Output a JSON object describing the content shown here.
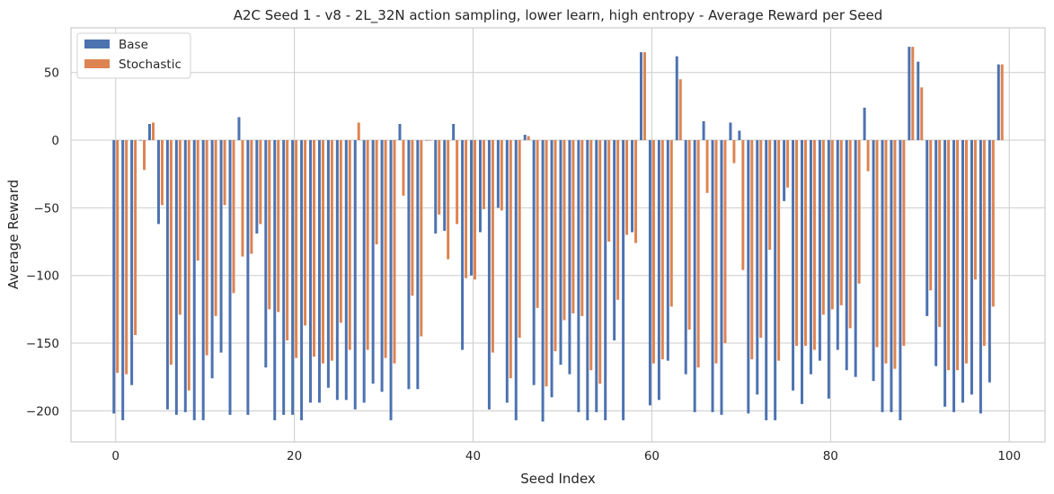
{
  "chart_data": {
    "type": "bar",
    "title": "A2C Seed 1 - v8 - 2L_32N action sampling, lower learn, high entropy - Average Reward per Seed",
    "xlabel": "Seed Index",
    "ylabel": "Average Reward",
    "xlim": [
      -5,
      104
    ],
    "ylim": [
      -223,
      83
    ],
    "xticks": [
      0,
      20,
      40,
      60,
      80,
      100
    ],
    "yticks": [
      -200,
      -150,
      -100,
      -50,
      0,
      50
    ],
    "grid": true,
    "legend_position": "top-left",
    "colors": {
      "Base": "#4c72b0",
      "Stochastic": "#dd8452"
    },
    "x": [
      0,
      1,
      2,
      3,
      4,
      5,
      6,
      7,
      8,
      9,
      10,
      11,
      12,
      13,
      14,
      15,
      16,
      17,
      18,
      19,
      20,
      21,
      22,
      23,
      24,
      25,
      26,
      27,
      28,
      29,
      30,
      31,
      32,
      33,
      34,
      35,
      36,
      37,
      38,
      39,
      40,
      41,
      42,
      43,
      44,
      45,
      46,
      47,
      48,
      49,
      50,
      51,
      52,
      53,
      54,
      55,
      56,
      57,
      58,
      59,
      60,
      61,
      62,
      63,
      64,
      65,
      66,
      67,
      68,
      69,
      70,
      71,
      72,
      73,
      74,
      75,
      76,
      77,
      78,
      79,
      80,
      81,
      82,
      83,
      84,
      85,
      86,
      87,
      88,
      89,
      90,
      91,
      92,
      93,
      94,
      95,
      96,
      97,
      98,
      99
    ],
    "series": [
      {
        "name": "Base",
        "values": [
          -202,
          -207,
          -181,
          0,
          12,
          -62,
          -199,
          -203,
          -201,
          -207,
          -207,
          -176,
          -157,
          -203,
          17,
          -203,
          -69,
          -168,
          -207,
          -203,
          -203,
          -207,
          -194,
          -194,
          -183,
          -192,
          -192,
          -199,
          -194,
          -180,
          -186,
          -207,
          12,
          -184,
          -184,
          0,
          -69,
          -67,
          12,
          -155,
          -100,
          -68,
          -199,
          -50,
          -194,
          -207,
          4,
          -181,
          -208,
          -190,
          -166,
          -173,
          -201,
          -207,
          -201,
          -207,
          -148,
          -207,
          -68,
          65,
          -196,
          -192,
          -163,
          62,
          -173,
          -201,
          14,
          -201,
          -203,
          13,
          7,
          -202,
          -188,
          -207,
          -207,
          -45,
          -185,
          -195,
          -173,
          -163,
          -191,
          -155,
          -170,
          -175,
          24,
          -178,
          -201,
          -201,
          -207,
          69,
          58,
          -130,
          -167,
          -197,
          -201,
          -194,
          -188,
          -202,
          -179,
          56
        ]
      },
      {
        "name": "Stochastic",
        "values": [
          -172,
          -173,
          -144,
          -22,
          13,
          -48,
          -166,
          -129,
          -185,
          -89,
          -159,
          -130,
          -48,
          -113,
          -86,
          -84,
          -62,
          -125,
          -127,
          -148,
          -161,
          -137,
          -160,
          -165,
          -163,
          -135,
          -155,
          13,
          -155,
          -77,
          -161,
          -165,
          -41,
          -115,
          -145,
          0,
          -55,
          -88,
          -62,
          -102,
          -103,
          -51,
          -157,
          -52,
          -176,
          -146,
          3,
          -124,
          -182,
          -156,
          -133,
          -128,
          -130,
          -170,
          -180,
          -75,
          -118,
          -70,
          -76,
          65,
          -165,
          -162,
          -123,
          45,
          -140,
          -168,
          -39,
          -165,
          -150,
          -17,
          -96,
          -162,
          -146,
          -81,
          -163,
          -35,
          -152,
          -152,
          -155,
          -129,
          -125,
          -122,
          -139,
          -106,
          -23,
          -153,
          -165,
          -169,
          -152,
          69,
          39,
          -111,
          -138,
          -170,
          -170,
          -165,
          -103,
          -152,
          -123,
          56
        ]
      }
    ]
  }
}
